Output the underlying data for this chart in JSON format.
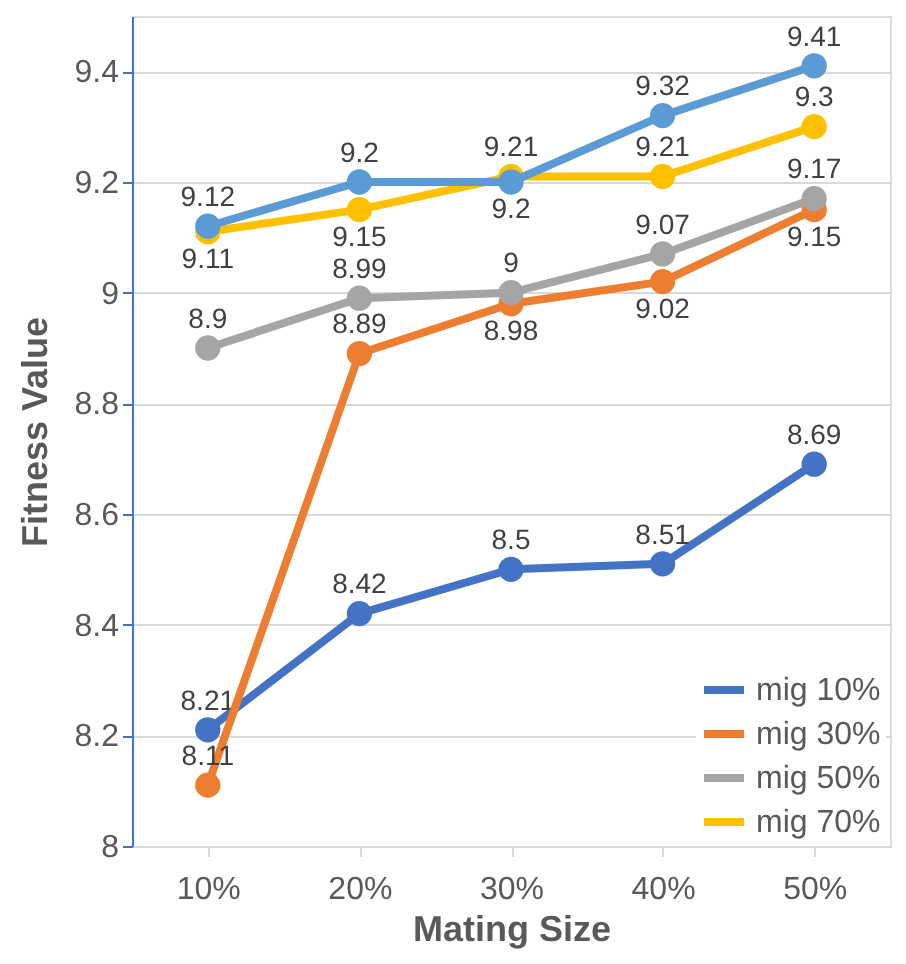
{
  "chart_data": {
    "type": "line",
    "xlabel": "Mating Size",
    "ylabel": "Fitness Value",
    "categories": [
      "10%",
      "20%",
      "30%",
      "40%",
      "50%"
    ],
    "series": [
      {
        "name": "mig 10%",
        "color": "#4472c4",
        "values": [
          8.21,
          8.42,
          8.5,
          8.51,
          8.69
        ]
      },
      {
        "name": "mig 30%",
        "color": "#ed7d31",
        "values": [
          8.11,
          8.89,
          8.98,
          9.02,
          9.15
        ]
      },
      {
        "name": "mig 50%",
        "color": "#a5a5a5",
        "values": [
          8.9,
          8.99,
          9,
          9.07,
          9.17
        ]
      },
      {
        "name": "mig 70%",
        "color": "#ffc000",
        "values": [
          9.11,
          9.15,
          9.21,
          9.21,
          9.3
        ]
      },
      {
        "color": "#5b9bd5",
        "values": [
          9.12,
          9.2,
          9.2,
          9.32,
          9.41
        ]
      }
    ],
    "ylim": [
      8,
      9.5
    ],
    "yticks": [
      8,
      8.2,
      8.4,
      8.6,
      8.8,
      9,
      9.2,
      9.4
    ],
    "grid": "y",
    "legend": "bottom right",
    "marker": "circle",
    "line_style": "solid",
    "data_labels": true
  }
}
